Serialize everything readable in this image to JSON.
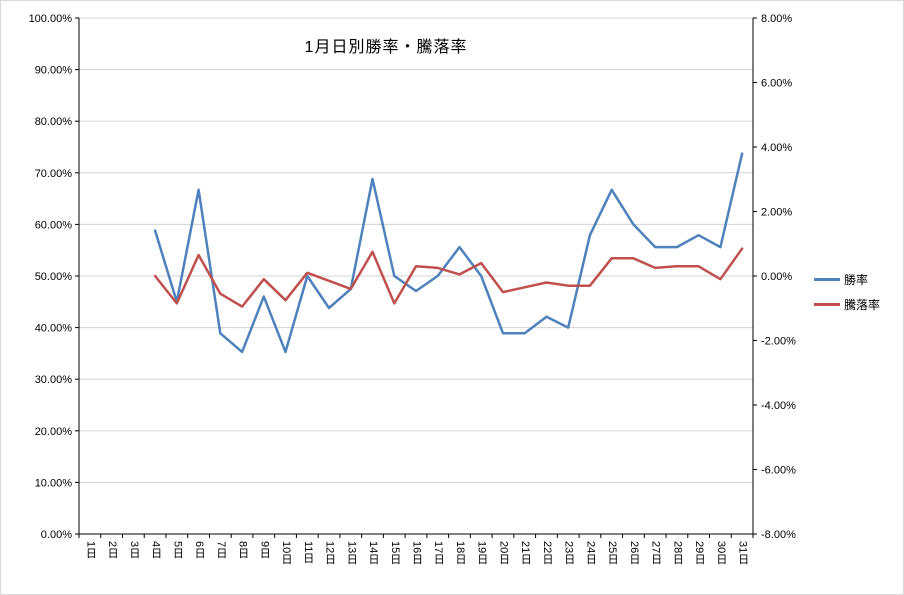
{
  "chart_data": {
    "type": "line",
    "title": "1月日別勝率・騰落率",
    "categories": [
      "1日",
      "2日",
      "3日",
      "4日",
      "5日",
      "6日",
      "7日",
      "8日",
      "9日",
      "10日",
      "11日",
      "12日",
      "13日",
      "14日",
      "15日",
      "16日",
      "17日",
      "18日",
      "19日",
      "20日",
      "21日",
      "22日",
      "23日",
      "24日",
      "25日",
      "26日",
      "27日",
      "28日",
      "29日",
      "30日",
      "31日"
    ],
    "series": [
      {
        "name": "勝率",
        "axis": "left",
        "color": "#4F81BD",
        "values": [
          null,
          null,
          null,
          58.8,
          45.0,
          66.7,
          38.9,
          35.3,
          46.0,
          35.3,
          50.0,
          43.8,
          47.5,
          68.8,
          50.0,
          47.1,
          50.0,
          55.6,
          50.0,
          38.9,
          38.9,
          42.1,
          40.0,
          57.9,
          66.7,
          60.0,
          55.6,
          55.6,
          57.9,
          55.6,
          73.7
        ]
      },
      {
        "name": "騰落率",
        "axis": "right",
        "color": "#C0504D",
        "values": [
          null,
          null,
          null,
          0.0,
          -0.85,
          0.65,
          -0.55,
          -0.95,
          -0.1,
          -0.75,
          0.1,
          -0.15,
          -0.4,
          0.75,
          -0.85,
          0.3,
          0.25,
          0.05,
          0.4,
          -0.5,
          -0.35,
          -0.2,
          -0.3,
          -0.3,
          0.55,
          0.55,
          0.25,
          0.3,
          0.3,
          -0.1,
          0.85
        ]
      }
    ],
    "left_axis": {
      "min": 0,
      "max": 100,
      "step": 10,
      "labels": [
        "0.00%",
        "10.00%",
        "20.00%",
        "30.00%",
        "40.00%",
        "50.00%",
        "60.00%",
        "70.00%",
        "80.00%",
        "90.00%",
        "100.00%"
      ]
    },
    "right_axis": {
      "min": -8,
      "max": 8,
      "step": 2,
      "labels": [
        "-8.00%",
        "-6.00%",
        "-4.00%",
        "-2.00%",
        "0.00%",
        "2.00%",
        "4.00%",
        "6.00%",
        "8.00%"
      ]
    },
    "grid": true,
    "legend_position": "right",
    "colors": {
      "gridline": "#d3d3d3",
      "axis": "#000000",
      "background": "#ffffff"
    }
  }
}
